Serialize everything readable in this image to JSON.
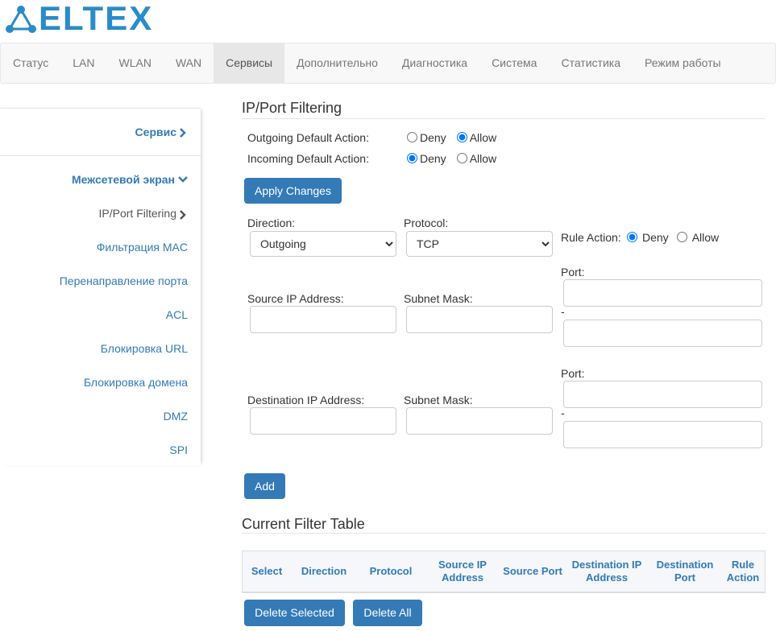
{
  "logo": {
    "text": "ELTEX"
  },
  "nav": {
    "items": [
      "Статус",
      "LAN",
      "WLAN",
      "WAN",
      "Сервисы",
      "Дополнительно",
      "Диагностика",
      "Система",
      "Статистика",
      "Режим работы"
    ]
  },
  "sidebar": {
    "section": "Сервис",
    "group": "Межсетевой экран",
    "items": [
      "IP/Port Filtering",
      "Фильтрация MAC",
      "Перенаправление порта",
      "ACL",
      "Блокировка URL",
      "Блокировка домена",
      "DMZ",
      "SPI"
    ]
  },
  "form": {
    "title": "IP/Port Filtering",
    "outgoing": {
      "label": "Outgoing Default Action:",
      "options": [
        "Deny",
        "Allow"
      ],
      "checked": 1
    },
    "incoming": {
      "label": "Incoming Default Action:",
      "options": [
        "Deny",
        "Allow"
      ],
      "checked": 0
    },
    "apply": "Apply Changes",
    "direction": {
      "label": "Direction:",
      "value": "Outgoing"
    },
    "protocol": {
      "label": "Protocol:",
      "value": "TCP"
    },
    "rule_action": {
      "label": "Rule Action:",
      "options": [
        "Deny",
        "Allow"
      ],
      "checked": 0
    },
    "source": {
      "ip_label": "Source IP Address:",
      "mask_label": "Subnet Mask:",
      "port_label": "Port:",
      "dash": "-"
    },
    "destination": {
      "ip_label": "Destination IP Address:",
      "mask_label": "Subnet Mask:",
      "port_label": "Port:",
      "dash": "-"
    },
    "add": "Add"
  },
  "table": {
    "title": "Current Filter Table",
    "headers": [
      "Select",
      "Direction",
      "Protocol",
      "Source IP Address",
      "Source Port",
      "Destination IP Address",
      "Destination Port",
      "Rule Action"
    ]
  },
  "buttons": {
    "delete_selected": "Delete Selected",
    "delete_all": "Delete All"
  }
}
